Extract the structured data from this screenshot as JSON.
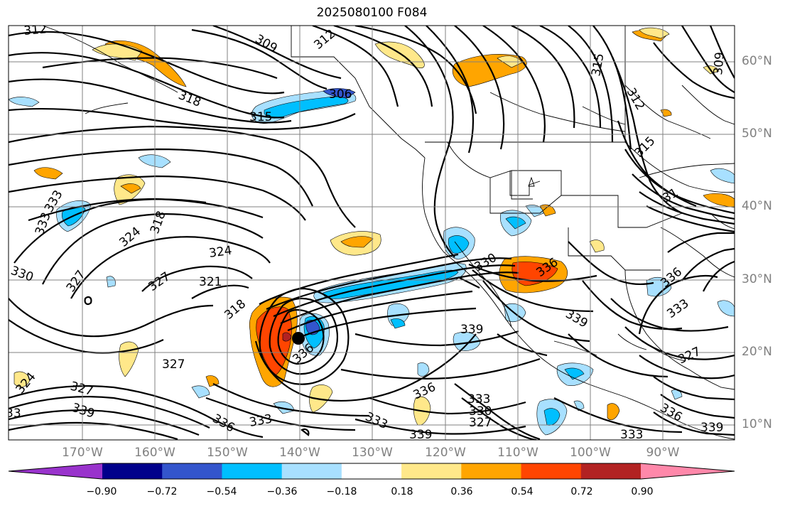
{
  "title": "2025080100 F084",
  "colors": {
    "contour": "#000000",
    "grid": "#808080",
    "border": "#000000"
  },
  "lat_labels": [
    "60°N",
    "50°N",
    "40°N",
    "30°N",
    "20°N",
    "10°N"
  ],
  "lon_labels": [
    "170°W",
    "160°W",
    "150°W",
    "140°W",
    "130°W",
    "120°W",
    "110°W",
    "100°W",
    "90°W"
  ],
  "colorbar": {
    "colors": [
      "#9933cc",
      "#00008b",
      "#3355cc",
      "#00bfff",
      "#a8e0ff",
      "#ffffff",
      "#ffe88a",
      "#ffa500",
      "#ff4500",
      "#b22222",
      "#ff88aa"
    ],
    "tick_labels": [
      "−0.90",
      "−0.72",
      "−0.54",
      "−0.36",
      "−0.18",
      "0.18",
      "0.36",
      "0.54",
      "0.72",
      "0.90"
    ]
  },
  "contour_labels": [
    {
      "text": "312"
    },
    {
      "text": "309"
    },
    {
      "text": "312"
    },
    {
      "text": "309"
    },
    {
      "text": "315"
    },
    {
      "text": "318"
    },
    {
      "text": "306"
    },
    {
      "text": "315"
    },
    {
      "text": "312"
    },
    {
      "text": "315"
    },
    {
      "text": "333"
    },
    {
      "text": "333"
    },
    {
      "text": "318"
    },
    {
      "text": "324"
    },
    {
      "text": "324"
    },
    {
      "text": "330"
    },
    {
      "text": "327"
    },
    {
      "text": "327"
    },
    {
      "text": "321"
    },
    {
      "text": "318"
    },
    {
      "text": "336"
    },
    {
      "text": "327"
    },
    {
      "text": "324"
    },
    {
      "text": "327"
    },
    {
      "text": "339"
    },
    {
      "text": "33"
    },
    {
      "text": "336"
    },
    {
      "text": "333"
    },
    {
      "text": "336"
    },
    {
      "text": "333"
    },
    {
      "text": "330"
    },
    {
      "text": "327"
    },
    {
      "text": "333"
    },
    {
      "text": "339"
    },
    {
      "text": "339"
    },
    {
      "text": "330"
    },
    {
      "text": "336"
    },
    {
      "text": "339"
    },
    {
      "text": "336"
    },
    {
      "text": "333"
    },
    {
      "text": "327"
    },
    {
      "text": "336"
    },
    {
      "text": "333"
    },
    {
      "text": "339"
    },
    {
      "text": "31"
    }
  ]
}
